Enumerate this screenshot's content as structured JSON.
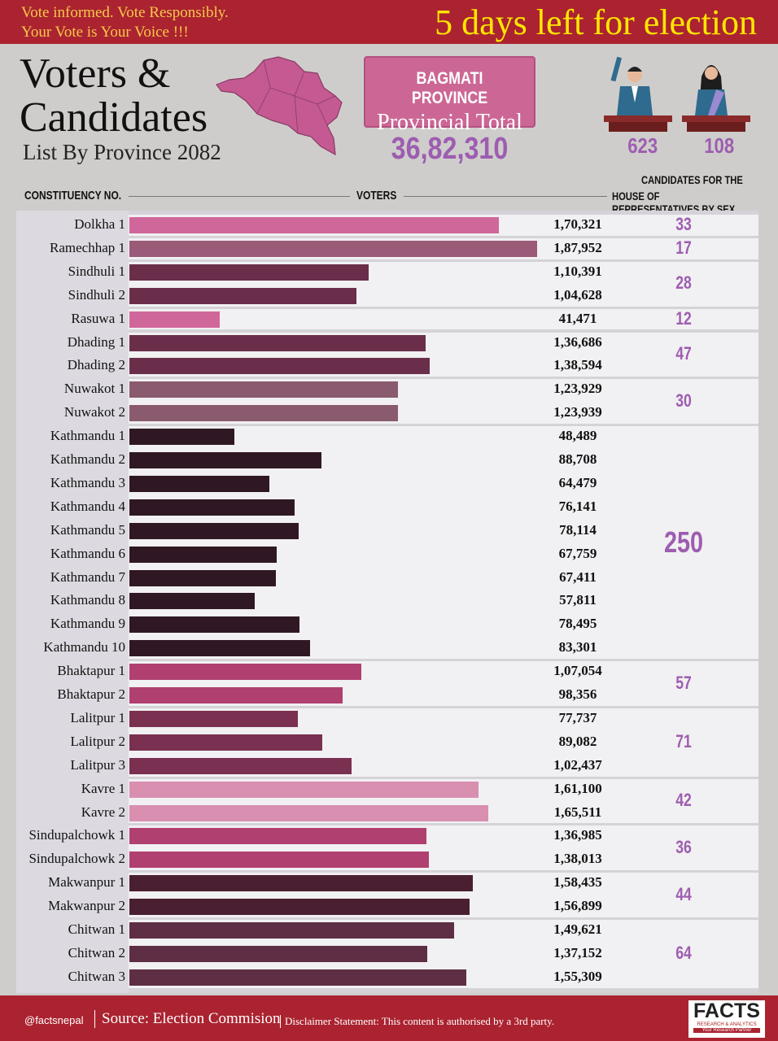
{
  "banner": {
    "tagline1": "Vote informed. Vote Responsibly.",
    "tagline2": "Your Vote is Your Voice !!!",
    "countdown": "5 days left for election"
  },
  "title": {
    "line1": "Voters &",
    "line2": "Candidates",
    "subtitle": "List By Province 2082"
  },
  "province": {
    "name": "BAGMATI PROVINCE",
    "label": "Provincial Total",
    "total": "36,82,310",
    "male_candidates": "623",
    "female_candidates": "108"
  },
  "headers": {
    "constituency": "CONSTITUENCY NO.",
    "voters": "VOTERS",
    "candidates_line1": "CANDIDATES FOR THE",
    "candidates_line2": "HOUSE OF REPRESENTATIVES BY SEX"
  },
  "chart_data": {
    "type": "bar",
    "orientation": "horizontal",
    "xlim": [
      0,
      187952
    ],
    "categories": [
      "Dolkha 1",
      "Ramechhap 1",
      "Sindhuli 1",
      "Sindhuli 2",
      "Rasuwa 1",
      "Dhading 1",
      "Dhading 2",
      "Nuwakot 1",
      "Nuwakot 2",
      "Kathmandu 1",
      "Kathmandu 2",
      "Kathmandu 3",
      "Kathmandu 4",
      "Kathmandu 5",
      "Kathmandu 6",
      "Kathmandu 7",
      "Kathmandu 8",
      "Kathmandu 9",
      "Kathmandu 10",
      "Bhaktapur 1",
      "Bhaktapur 2",
      "Lalitpur 1",
      "Lalitpur 2",
      "Lalitpur 3",
      "Kavre 1",
      "Kavre 2",
      "Sindupalchowk 1",
      "Sindupalchowk 2",
      "Makwanpur 1",
      "Makwanpur 2",
      "Chitwan 1",
      "Chitwan 2",
      "Chitwan 3"
    ],
    "values": [
      170321,
      187952,
      110391,
      104628,
      41471,
      136686,
      138594,
      123929,
      123939,
      48489,
      88708,
      64479,
      76141,
      78114,
      67759,
      67411,
      57811,
      78495,
      83301,
      107054,
      98356,
      77737,
      89082,
      102437,
      161100,
      165511,
      136985,
      138013,
      158435,
      156899,
      149621,
      137152,
      155309
    ],
    "value_labels": [
      "1,70,321",
      "1,87,952",
      "1,10,391",
      "1,04,628",
      "41,471",
      "1,36,686",
      "1,38,594",
      "1,23,929",
      "1,23,939",
      "48,489",
      "88,708",
      "64,479",
      "76,141",
      "78,114",
      "67,759",
      "67,411",
      "57,811",
      "78,495",
      "83,301",
      "1,07,054",
      "98,356",
      "77,737",
      "89,082",
      "1,02,437",
      "1,61,100",
      "1,65,511",
      "1,36,985",
      "1,38,013",
      "1,58,435",
      "1,56,899",
      "1,49,621",
      "1,37,152",
      "1,55,309"
    ],
    "district_groups": [
      {
        "district": "Dolkha",
        "rows": 1,
        "candidates": "33",
        "color": "#d0679a"
      },
      {
        "district": "Ramechhap",
        "rows": 1,
        "candidates": "17",
        "color": "#9a5a78"
      },
      {
        "district": "Sindhuli",
        "rows": 2,
        "candidates": "28",
        "color": "#6b2e4a"
      },
      {
        "district": "Rasuwa",
        "rows": 1,
        "candidates": "12",
        "color": "#d0679a"
      },
      {
        "district": "Dhading",
        "rows": 2,
        "candidates": "47",
        "color": "#6b2e4a"
      },
      {
        "district": "Nuwakot",
        "rows": 2,
        "candidates": "30",
        "color": "#8a5a6e"
      },
      {
        "district": "Kathmandu",
        "rows": 10,
        "candidates": "250",
        "color": "#2f1824"
      },
      {
        "district": "Bhaktapur",
        "rows": 2,
        "candidates": "57",
        "color": "#b04070"
      },
      {
        "district": "Lalitpur",
        "rows": 3,
        "candidates": "71",
        "color": "#7a3050"
      },
      {
        "district": "Kavre",
        "rows": 2,
        "candidates": "42",
        "color": "#d88fb0"
      },
      {
        "district": "Sindupalchowk",
        "rows": 2,
        "candidates": "36",
        "color": "#b04070"
      },
      {
        "district": "Makwanpur",
        "rows": 2,
        "candidates": "44",
        "color": "#4a1f32"
      },
      {
        "district": "Chitwan",
        "rows": 3,
        "candidates": "64",
        "color": "#5e2e45"
      }
    ]
  },
  "footer": {
    "handle": "@factsnepal",
    "source": "Source: Election Commision",
    "disclaimer": "Disclaimer Statement: This content is authorised by a 3rd party.",
    "logo": "FACTS",
    "logo_sub": "RESEARCH & ANALYTICS",
    "logo_tag": "Your Research Partner"
  }
}
